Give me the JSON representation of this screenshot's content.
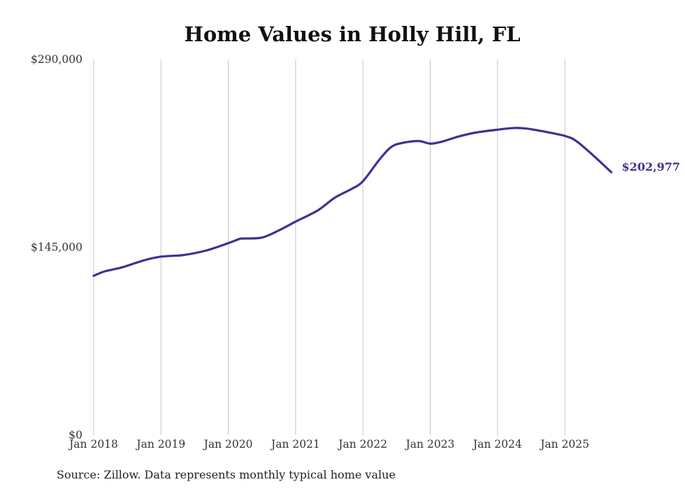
{
  "chart_data": {
    "type": "line",
    "title": "Home Values in Holly Hill, FL",
    "xlabel": "",
    "ylabel": "",
    "ylim": [
      0,
      290000
    ],
    "y_ticks": [
      {
        "value": 0,
        "label": "$0"
      },
      {
        "value": 145000,
        "label": "$145,000"
      },
      {
        "value": 290000,
        "label": "$290,000"
      }
    ],
    "x_ticks": [
      {
        "value": 2018,
        "label": "Jan 2018"
      },
      {
        "value": 2019,
        "label": "Jan 2019"
      },
      {
        "value": 2020,
        "label": "Jan 2020"
      },
      {
        "value": 2021,
        "label": "Jan 2021"
      },
      {
        "value": 2022,
        "label": "Jan 2022"
      },
      {
        "value": 2023,
        "label": "Jan 2023"
      },
      {
        "value": 2024,
        "label": "Jan 2024"
      },
      {
        "value": 2025,
        "label": "Jan 2025"
      }
    ],
    "xlim": [
      2018,
      2025.69
    ],
    "grid": {
      "vertical": true,
      "horizontal": false
    },
    "series": [
      {
        "name": "Typical home value",
        "color": "#3d3391",
        "x": [
          2018.0,
          2018.17,
          2018.42,
          2018.75,
          2019.0,
          2019.33,
          2019.67,
          2020.0,
          2020.17,
          2020.25,
          2020.5,
          2020.75,
          2021.0,
          2021.33,
          2021.58,
          2021.83,
          2022.0,
          2022.25,
          2022.42,
          2022.58,
          2022.83,
          2023.0,
          2023.17,
          2023.42,
          2023.67,
          2024.0,
          2024.25,
          2024.42,
          2024.67,
          2025.0,
          2025.17,
          2025.42,
          2025.69
        ],
        "values": [
          123000,
          126500,
          129500,
          135000,
          137800,
          139000,
          142500,
          148200,
          151500,
          151800,
          152500,
          158000,
          164800,
          173500,
          183200,
          190000,
          196000,
          213000,
          222400,
          225500,
          227000,
          225000,
          226500,
          230500,
          233500,
          235800,
          237100,
          236700,
          234600,
          231000,
          227000,
          216000,
          202977
        ]
      }
    ],
    "end_label": "$202,977"
  },
  "footer": {
    "source_note": "Source: Zillow. Data represents monthly typical home value"
  }
}
